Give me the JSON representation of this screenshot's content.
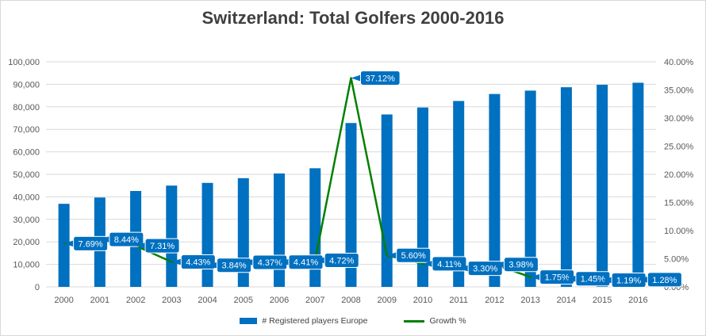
{
  "chart_data": {
    "type": "bar",
    "title": "Switzerland: Total Golfers 2000-2016",
    "categories": [
      "2000",
      "2001",
      "2002",
      "2003",
      "2004",
      "2005",
      "2006",
      "2007",
      "2008",
      "2009",
      "2010",
      "2011",
      "2012",
      "2013",
      "2014",
      "2015",
      "2016"
    ],
    "series": [
      {
        "name": "# Registered players Europe",
        "type": "bar",
        "axis": "left",
        "color": "#0070c0",
        "values": [
          36900,
          39700,
          42600,
          45000,
          46200,
          48300,
          50400,
          52700,
          72800,
          76600,
          79700,
          82600,
          85700,
          87200,
          88700,
          89800,
          90700
        ]
      },
      {
        "name": "Growth %",
        "type": "line",
        "axis": "right",
        "color": "#008000",
        "values": [
          7.69,
          8.44,
          7.31,
          4.43,
          3.84,
          4.37,
          4.41,
          4.72,
          37.12,
          5.6,
          4.11,
          3.3,
          3.98,
          1.75,
          1.45,
          1.19,
          1.28
        ],
        "labels": [
          "7.69%",
          "8.44%",
          "7.31%",
          "4.43%",
          "3.84%",
          "4.37%",
          "4.41%",
          "4.72%",
          "37.12%",
          "5.60%",
          "4.11%",
          "3.30%",
          "3.98%",
          "1.75%",
          "1.45%",
          "1.19%",
          "1.28%"
        ]
      }
    ],
    "y_left": {
      "min": 0,
      "max": 100000,
      "step": 10000,
      "ticks": [
        "0",
        "10,000",
        "20,000",
        "30,000",
        "40,000",
        "50,000",
        "60,000",
        "70,000",
        "80,000",
        "90,000",
        "100,000"
      ]
    },
    "y_right": {
      "min": 0,
      "max": 40,
      "step": 5,
      "ticks": [
        "0.00%",
        "5.00%",
        "10.00%",
        "15.00%",
        "20.00%",
        "25.00%",
        "30.00%",
        "35.00%",
        "40.00%"
      ]
    },
    "grid": true,
    "legend_position": "bottom"
  }
}
